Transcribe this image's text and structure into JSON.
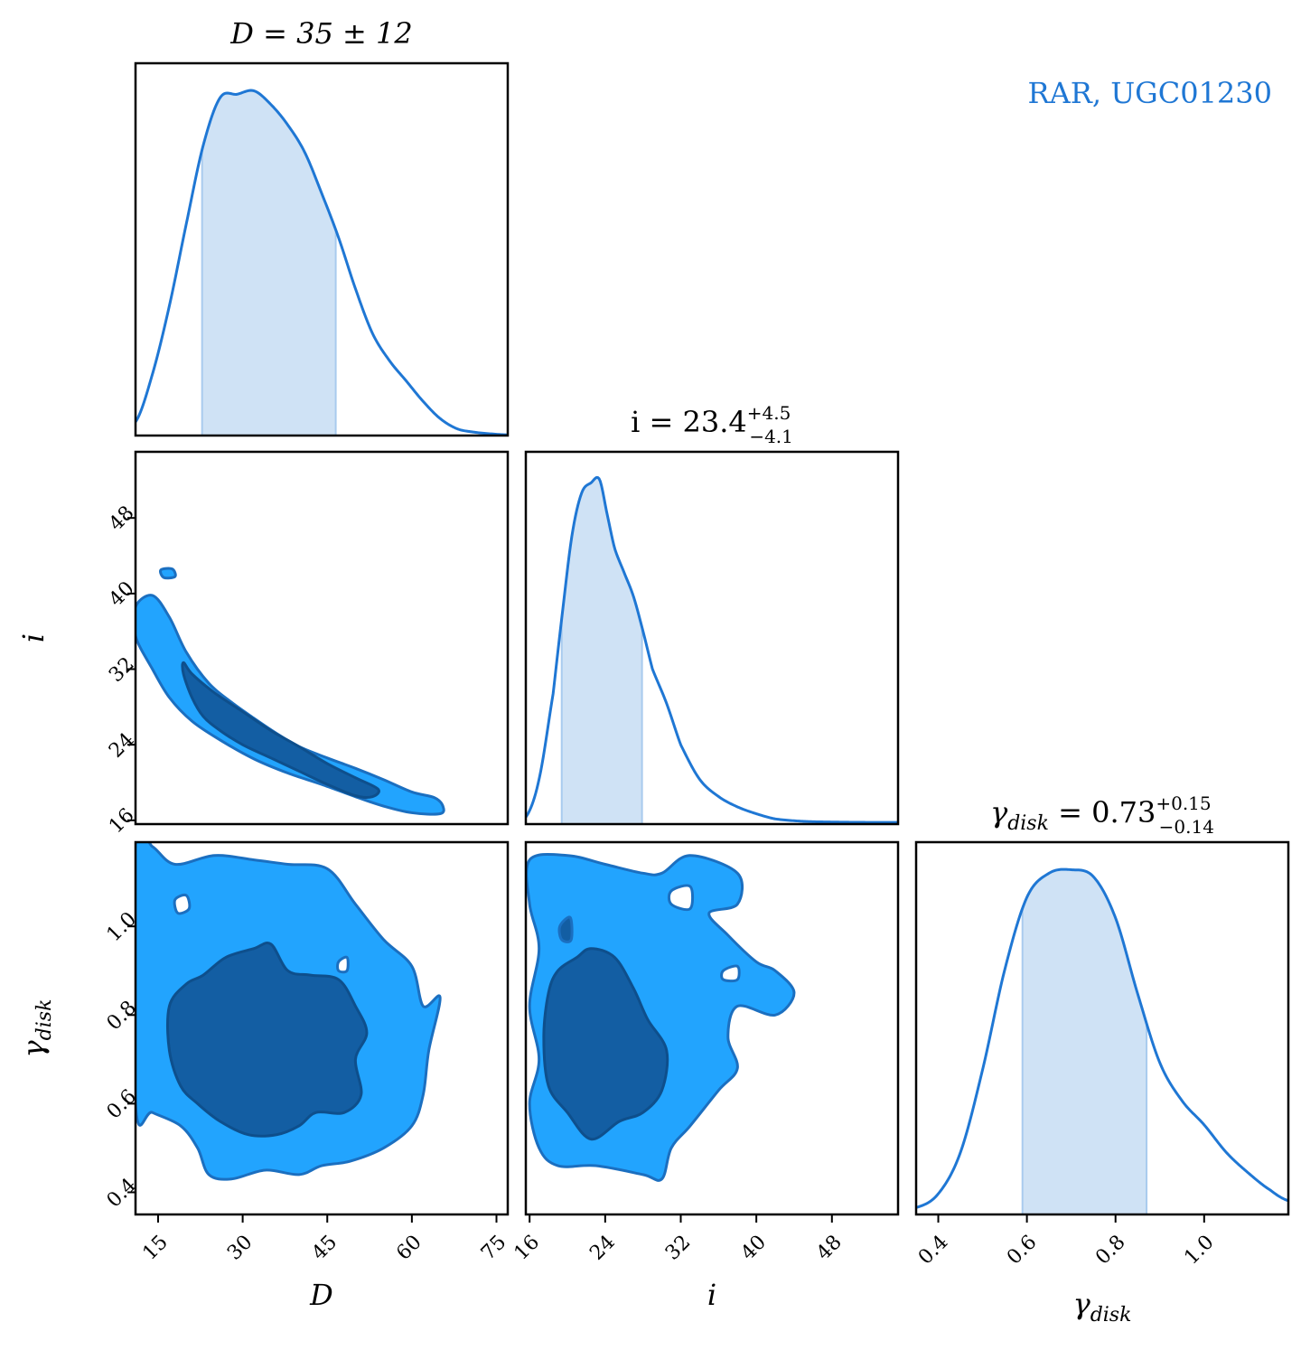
{
  "chart_data": {
    "type": "corner",
    "legend_label": "RAR, UGC01230",
    "legend_placement": "top-right",
    "colors": {
      "line": "#1f77d4",
      "fill_1d": "#cfe2f5",
      "contour_inner": "#135ea3",
      "contour_outer": "#22a4fe",
      "edge": "#1b6fc0"
    },
    "params": [
      {
        "symbol": "D",
        "axis_label": "D",
        "title": {
          "prefix": "D = 35 ± 12",
          "median": "",
          "plus": "",
          "minus": ""
        },
        "range": [
          11,
          77
        ],
        "ticks": [
          15,
          30,
          45,
          60,
          75
        ],
        "tick_labels": [
          "15",
          "30",
          "45",
          "60",
          "75"
        ],
        "interval": [
          22.8,
          46.5
        ],
        "posterior": {
          "x": [
            11,
            14,
            17,
            20,
            23,
            26,
            29,
            32,
            35,
            38,
            41,
            44,
            47,
            50,
            53,
            56,
            59,
            62,
            65,
            68,
            71,
            74,
            77
          ],
          "y": [
            0.04,
            0.18,
            0.38,
            0.62,
            0.85,
            0.99,
            1.0,
            1.01,
            0.97,
            0.91,
            0.83,
            0.71,
            0.58,
            0.43,
            0.3,
            0.22,
            0.16,
            0.1,
            0.05,
            0.02,
            0.01,
            0.005,
            0.002
          ]
        }
      },
      {
        "symbol": "i",
        "axis_label": "i",
        "title": {
          "prefix": "i = ",
          "median": "23.4",
          "plus": "+4.5",
          "minus": "−4.1"
        },
        "range": [
          15.6,
          55
        ],
        "ticks": [
          16,
          24,
          32,
          40,
          48
        ],
        "tick_labels": [
          "16",
          "24",
          "32",
          "40",
          "48"
        ],
        "interval": [
          19.4,
          27.9
        ],
        "posterior": {
          "x": [
            15.6,
            17,
            18.5,
            19.5,
            20.5,
            21.5,
            22.5,
            23.4,
            24.2,
            25,
            26,
            27,
            28,
            29,
            30.5,
            32,
            34,
            36,
            38,
            40,
            42,
            45,
            48,
            52,
            55
          ],
          "y": [
            0.02,
            0.13,
            0.38,
            0.62,
            0.84,
            0.96,
            0.99,
            1.0,
            0.9,
            0.8,
            0.73,
            0.66,
            0.56,
            0.45,
            0.35,
            0.23,
            0.13,
            0.08,
            0.05,
            0.03,
            0.015,
            0.008,
            0.006,
            0.005,
            0.005
          ]
        }
      },
      {
        "symbol": "γ",
        "axis_label": "γ",
        "axis_label_sub": "disk",
        "title": {
          "prefix": "γ",
          "sub": "disk",
          "eq": " = ",
          "median": "0.73",
          "plus": "+0.15",
          "minus": "−0.14"
        },
        "range": [
          0.35,
          1.19
        ],
        "ticks": [
          0.4,
          0.6,
          0.8,
          1.0
        ],
        "tick_labels": [
          "0.4",
          "0.6",
          "0.8",
          "1.0"
        ],
        "interval": [
          0.59,
          0.87
        ],
        "posterior": {
          "x": [
            0.35,
            0.4,
            0.45,
            0.5,
            0.55,
            0.6,
            0.65,
            0.7,
            0.75,
            0.8,
            0.85,
            0.9,
            0.95,
            1.0,
            1.05,
            1.1,
            1.15,
            1.19
          ],
          "y": [
            0.02,
            0.06,
            0.18,
            0.42,
            0.71,
            0.92,
            0.99,
            1.0,
            0.98,
            0.86,
            0.64,
            0.44,
            0.33,
            0.26,
            0.18,
            0.12,
            0.07,
            0.04
          ]
        }
      }
    ],
    "pairs": [
      {
        "x_param": 0,
        "y_param": 1,
        "outer": [
          [
            11,
            38.6
          ],
          [
            14,
            39.8
          ],
          [
            17,
            37.5
          ],
          [
            20,
            33.8
          ],
          [
            24,
            30.5
          ],
          [
            28,
            28.5
          ],
          [
            32,
            26.8
          ],
          [
            36,
            25.2
          ],
          [
            40,
            23.8
          ],
          [
            45,
            22.6
          ],
          [
            50,
            21.5
          ],
          [
            55,
            20.3
          ],
          [
            60,
            19.0
          ],
          [
            64,
            18.4
          ],
          [
            65.5,
            17.5
          ],
          [
            65,
            16.7
          ],
          [
            60,
            16.8
          ],
          [
            55,
            17.5
          ],
          [
            50,
            18.5
          ],
          [
            44,
            19.8
          ],
          [
            38,
            21.0
          ],
          [
            32,
            22.5
          ],
          [
            26,
            24.5
          ],
          [
            21,
            26.5
          ],
          [
            17,
            29.0
          ],
          [
            14,
            32.0
          ],
          [
            11,
            35.5
          ]
        ],
        "inner": [
          [
            19.5,
            32.7
          ],
          [
            21,
            31.5
          ],
          [
            25,
            29.5
          ],
          [
            30,
            27.5
          ],
          [
            35,
            25.5
          ],
          [
            40,
            23.8
          ],
          [
            45,
            22.0
          ],
          [
            50,
            20.5
          ],
          [
            54,
            19.3
          ],
          [
            53,
            18.5
          ],
          [
            50,
            18.6
          ],
          [
            45,
            19.8
          ],
          [
            40,
            21.2
          ],
          [
            35,
            22.6
          ],
          [
            30,
            24.0
          ],
          [
            26,
            25.5
          ],
          [
            23,
            27.0
          ],
          [
            21,
            29.0
          ],
          [
            19.5,
            31.5
          ]
        ],
        "islands": [
          [
            [
              15.5,
              42.5
            ],
            [
              17.5,
              42.6
            ],
            [
              18,
              41.8
            ],
            [
              16,
              41.7
            ]
          ]
        ]
      },
      {
        "x_param": 0,
        "y_param": 2,
        "outer": [
          [
            11,
            1.19
          ],
          [
            14,
            1.18
          ],
          [
            18,
            1.14
          ],
          [
            25,
            1.16
          ],
          [
            32,
            1.15
          ],
          [
            38,
            1.14
          ],
          [
            45,
            1.13
          ],
          [
            50,
            1.05
          ],
          [
            55,
            0.97
          ],
          [
            60,
            0.91
          ],
          [
            62,
            0.82
          ],
          [
            65,
            0.84
          ],
          [
            63,
            0.72
          ],
          [
            62,
            0.62
          ],
          [
            60,
            0.55
          ],
          [
            55,
            0.5
          ],
          [
            49,
            0.47
          ],
          [
            44,
            0.46
          ],
          [
            40,
            0.44
          ],
          [
            34,
            0.45
          ],
          [
            28,
            0.43
          ],
          [
            24,
            0.44
          ],
          [
            22,
            0.5
          ],
          [
            19,
            0.55
          ],
          [
            14,
            0.58
          ],
          [
            11,
            0.6
          ]
        ],
        "inner": [
          [
            20,
            0.87
          ],
          [
            23,
            0.89
          ],
          [
            27,
            0.93
          ],
          [
            32,
            0.95
          ],
          [
            35,
            0.96
          ],
          [
            38,
            0.9
          ],
          [
            42,
            0.89
          ],
          [
            47,
            0.88
          ],
          [
            50,
            0.82
          ],
          [
            52,
            0.76
          ],
          [
            50,
            0.7
          ],
          [
            51,
            0.62
          ],
          [
            48,
            0.58
          ],
          [
            43,
            0.58
          ],
          [
            40,
            0.55
          ],
          [
            36,
            0.53
          ],
          [
            31,
            0.53
          ],
          [
            26,
            0.56
          ],
          [
            22,
            0.6
          ],
          [
            19,
            0.64
          ],
          [
            17,
            0.72
          ],
          [
            17,
            0.82
          ]
        ],
        "holes": [
          [
            [
              18,
              1.06
            ],
            [
              20,
              1.07
            ],
            [
              20.5,
              1.04
            ],
            [
              18.5,
              1.03
            ]
          ],
          [
            [
              47,
              0.92
            ],
            [
              48.5,
              0.93
            ],
            [
              48.5,
              0.9
            ],
            [
              47,
              0.9
            ]
          ]
        ]
      },
      {
        "x_param": 1,
        "y_param": 2,
        "outer": [
          [
            16,
            1.15
          ],
          [
            20,
            1.16
          ],
          [
            24,
            1.14
          ],
          [
            28,
            1.12
          ],
          [
            30,
            1.12
          ],
          [
            33,
            1.16
          ],
          [
            38,
            1.12
          ],
          [
            38,
            1.05
          ],
          [
            35,
            1.03
          ],
          [
            37,
            0.98
          ],
          [
            40,
            0.92
          ],
          [
            42,
            0.9
          ],
          [
            44,
            0.85
          ],
          [
            42,
            0.8
          ],
          [
            38,
            0.82
          ],
          [
            37,
            0.75
          ],
          [
            38,
            0.68
          ],
          [
            36,
            0.63
          ],
          [
            33,
            0.55
          ],
          [
            31,
            0.5
          ],
          [
            30,
            0.43
          ],
          [
            28,
            0.44
          ],
          [
            23,
            0.46
          ],
          [
            19,
            0.46
          ],
          [
            17,
            0.5
          ],
          [
            16,
            0.6
          ],
          [
            17,
            0.7
          ],
          [
            16,
            0.82
          ],
          [
            17,
            0.95
          ],
          [
            16,
            1.05
          ]
        ],
        "inner": [
          [
            19,
            0.9
          ],
          [
            21,
            0.93
          ],
          [
            22.5,
            0.95
          ],
          [
            25,
            0.93
          ],
          [
            27,
            0.86
          ],
          [
            28.5,
            0.79
          ],
          [
            30.5,
            0.72
          ],
          [
            30,
            0.63
          ],
          [
            28,
            0.58
          ],
          [
            25.5,
            0.56
          ],
          [
            22.5,
            0.52
          ],
          [
            20,
            0.58
          ],
          [
            18,
            0.64
          ],
          [
            17.5,
            0.75
          ],
          [
            18,
            0.85
          ]
        ],
        "holes": [
          [
            [
              31,
              1.08
            ],
            [
              33,
              1.09
            ],
            [
              33,
              1.04
            ],
            [
              31,
              1.05
            ]
          ],
          [
            [
              36.5,
              0.9
            ],
            [
              38,
              0.91
            ],
            [
              38,
              0.88
            ],
            [
              36.5,
              0.88
            ]
          ]
        ],
        "islands": [
          [
            [
              19.2,
              1.0
            ],
            [
              20.3,
              1.02
            ],
            [
              20.4,
              0.97
            ],
            [
              19.4,
              0.97
            ]
          ]
        ]
      }
    ]
  }
}
